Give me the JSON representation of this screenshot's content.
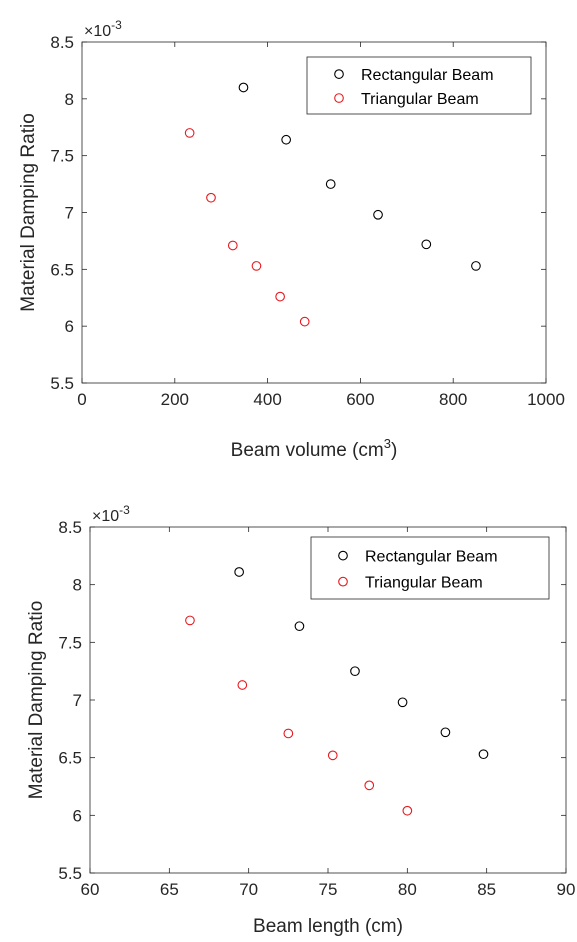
{
  "colors": {
    "rectangular": "#000000",
    "triangular": "#e8191e",
    "axis": "#262626"
  },
  "chart_data": [
    {
      "type": "scatter",
      "xlabel": "Beam volume (cm",
      "xlabel_sup": "3",
      "xlabel_close": ")",
      "ylabel": "Material Damping Ratio",
      "y_exponent_base": "×10",
      "y_exponent_power": "-3",
      "xlim": [
        0,
        1000
      ],
      "ylim": [
        5.5,
        8.5
      ],
      "xticks": [
        0,
        200,
        400,
        600,
        800,
        1000
      ],
      "yticks": [
        5.5,
        6,
        6.5,
        7,
        7.5,
        8,
        8.5
      ],
      "xtick_labels": [
        "0",
        "200",
        "400",
        "600",
        "800",
        "1000"
      ],
      "ytick_labels": [
        "5.5",
        "6",
        "6.5",
        "7",
        "7.5",
        "8",
        "8.5"
      ],
      "legend_position": "top-right",
      "grid": false,
      "series": [
        {
          "name": "Rectangular Beam",
          "color": "#000000",
          "marker": "circle-open",
          "x": [
            348,
            440,
            536,
            638,
            742,
            849
          ],
          "y": [
            8.1,
            7.64,
            7.25,
            6.98,
            6.72,
            6.53
          ]
        },
        {
          "name": "Triangular Beam",
          "color": "#e8191e",
          "marker": "circle-open",
          "x": [
            232,
            278,
            325,
            376,
            427,
            480
          ],
          "y": [
            7.7,
            7.13,
            6.71,
            6.53,
            6.26,
            6.04
          ]
        }
      ]
    },
    {
      "type": "scatter",
      "xlabel": "Beam length (cm)",
      "ylabel": "Material Damping Ratio",
      "y_exponent_base": "×10",
      "y_exponent_power": "-3",
      "xlim": [
        60,
        90
      ],
      "ylim": [
        5.5,
        8.5
      ],
      "xticks": [
        60,
        65,
        70,
        75,
        80,
        85,
        90
      ],
      "yticks": [
        5.5,
        6,
        6.5,
        7,
        7.5,
        8,
        8.5
      ],
      "xtick_labels": [
        "60",
        "65",
        "70",
        "75",
        "80",
        "85",
        "90"
      ],
      "ytick_labels": [
        "5.5",
        "6",
        "6.5",
        "7",
        "7.5",
        "8",
        "8.5"
      ],
      "legend_position": "top-right",
      "grid": false,
      "series": [
        {
          "name": "Rectangular Beam",
          "color": "#000000",
          "marker": "circle-open",
          "x": [
            69.4,
            73.2,
            76.7,
            79.7,
            82.4,
            84.8
          ],
          "y": [
            8.11,
            7.64,
            7.25,
            6.98,
            6.72,
            6.53
          ]
        },
        {
          "name": "Triangular Beam",
          "color": "#e8191e",
          "marker": "circle-open",
          "x": [
            66.3,
            69.6,
            72.5,
            75.3,
            77.6,
            80.0
          ],
          "y": [
            7.69,
            7.13,
            6.71,
            6.52,
            6.26,
            6.04
          ]
        }
      ]
    }
  ]
}
